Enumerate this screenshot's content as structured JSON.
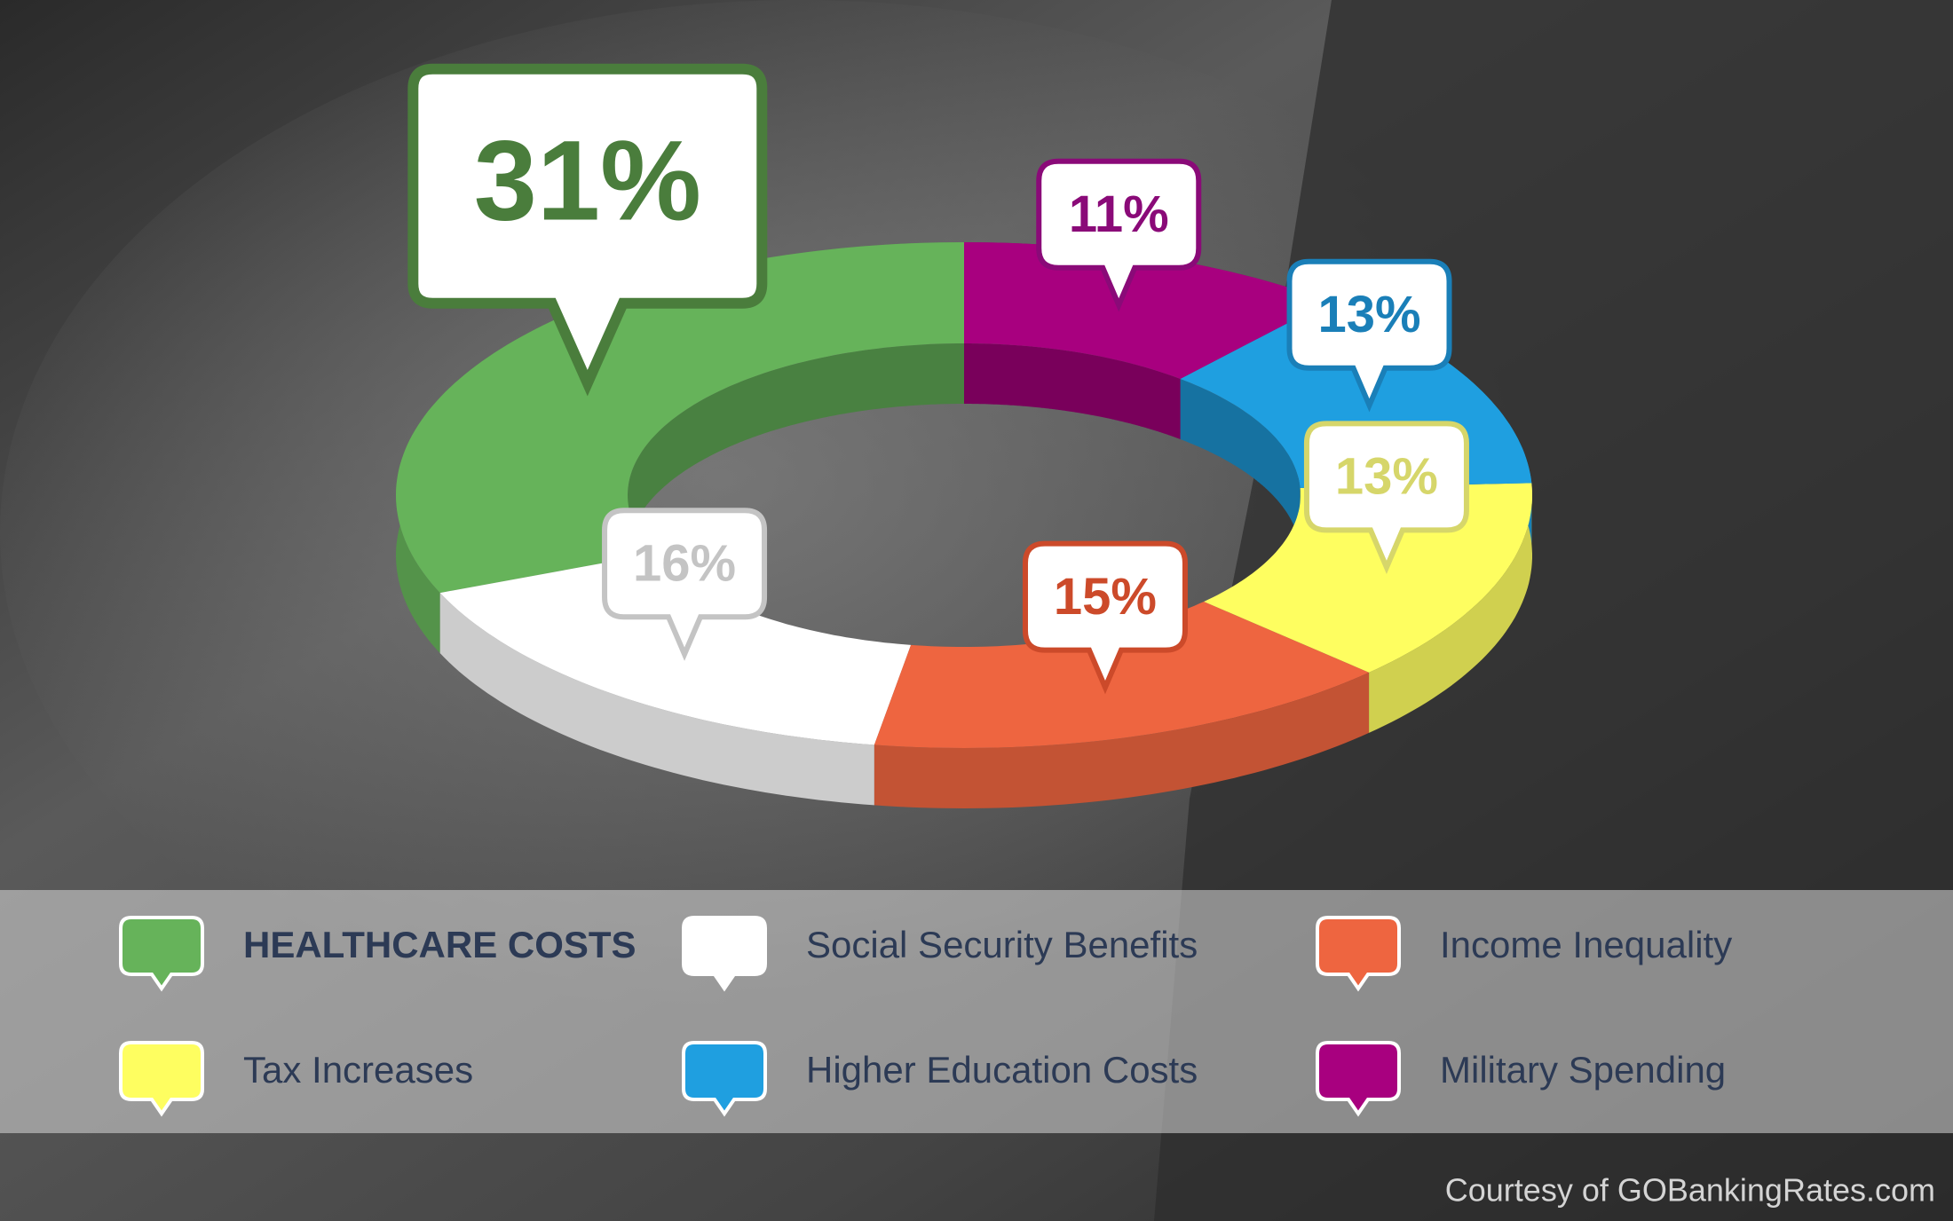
{
  "chart_data": {
    "type": "donut3d",
    "categories": [
      "HEALTHCARE COSTS",
      "Social Security Benefits",
      "Income Inequality",
      "Tax Increases",
      "Higher Education Costs",
      "Military Spending"
    ],
    "values": [
      31,
      16,
      15,
      13,
      13,
      11
    ],
    "value_labels": [
      "31%",
      "16%",
      "15%",
      "13%",
      "13%",
      "11%"
    ],
    "colors": [
      "#66b35a",
      "#ffffff",
      "#ee6540",
      "#fefe60",
      "#1f9fe0",
      "#a8007f"
    ],
    "label_colors": [
      "#4a7d3c",
      "#c4c4c4",
      "#cc4a2a",
      "#d6d66a",
      "#1a7fb8",
      "#8a0a78"
    ],
    "legend_position": "bottom",
    "credit": "Courtesy of GOBankingRates.com"
  }
}
